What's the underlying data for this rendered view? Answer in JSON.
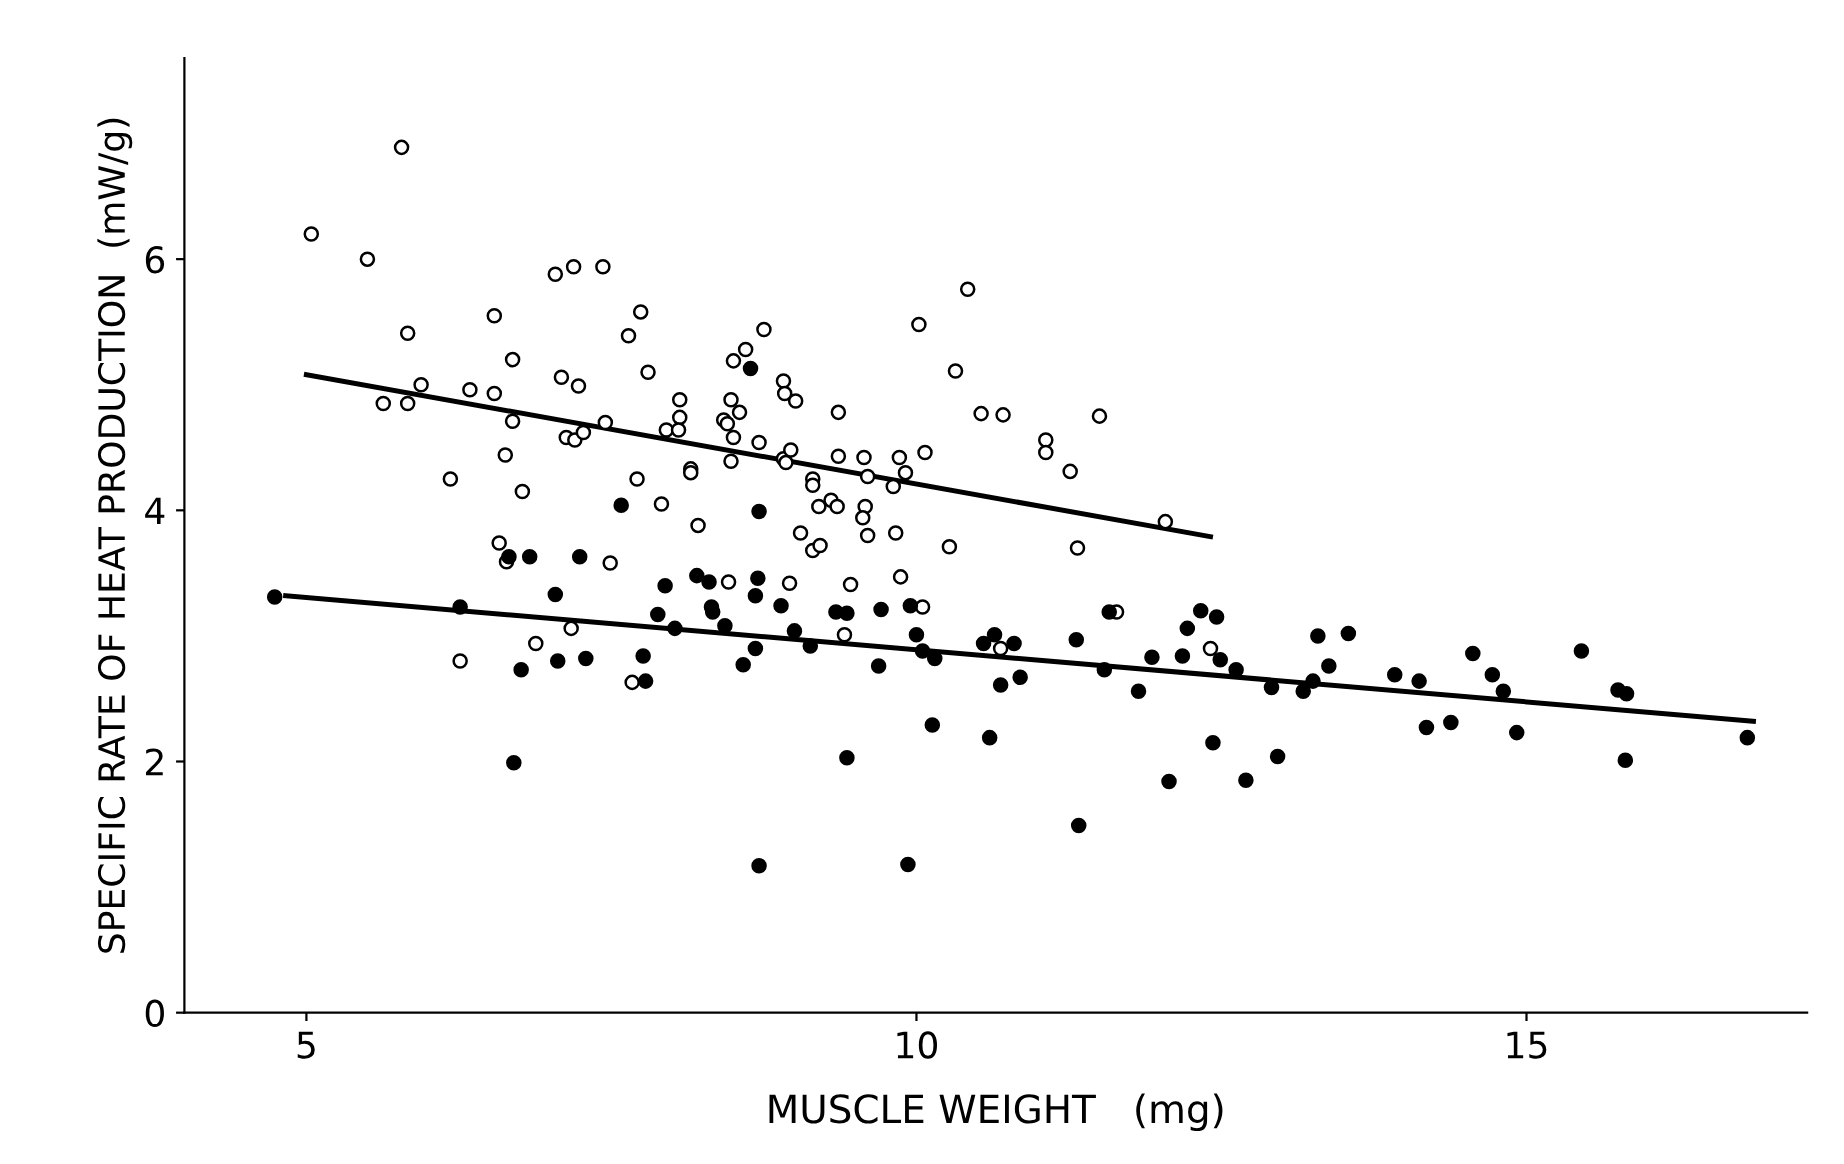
{
  "chart_data": {
    "type": "scatter",
    "xlabel": "MUSCLE WEIGHT   (mg)",
    "ylabel": "SPECIFIC RATE OF HEAT PRODUCTION  (mW/g)",
    "xlim": [
      4,
      17.3
    ],
    "xticks": [
      5,
      10,
      15
    ],
    "ylim": [
      0,
      7.6
    ],
    "yticks": [
      0,
      2,
      4,
      6
    ],
    "grid": false,
    "series": [
      {
        "color": "#ffffff",
        "marker": "circle",
        "x": [
          5.04,
          5.5,
          5.78,
          5.83,
          5.63,
          5.83,
          5.94,
          6.18,
          6.34,
          6.54,
          6.54,
          6.69,
          6.63,
          6.69,
          6.77,
          6.58,
          6.64,
          6.26,
          6.88,
          7.04,
          7.19,
          7.43,
          7.09,
          7.23,
          7.13,
          7.2,
          7.27,
          7.45,
          7.17,
          7.49,
          7.64,
          7.74,
          7.8,
          7.71,
          7.91,
          7.67,
          7.95,
          8.06,
          8.06,
          8.05,
          8.15,
          8.15,
          8.21,
          8.5,
          8.6,
          8.75,
          8.42,
          8.48,
          8.55,
          8.45,
          8.5,
          8.48,
          8.71,
          8.46,
          8.91,
          8.92,
          9.01,
          8.91,
          8.93,
          8.97,
          8.96,
          9.15,
          9.15,
          9.05,
          9.2,
          9.15,
          9.21,
          9.3,
          9.35,
          9.36,
          9.36,
          9.41,
          9.46,
          9.57,
          9.6,
          9.58,
          9.56,
          9.6,
          9.81,
          9.83,
          9.86,
          9.91,
          9.87,
          10.02,
          10.07,
          10.05,
          10.27,
          10.32,
          10.42,
          10.53,
          10.71,
          10.69,
          11.06,
          11.06,
          11.26,
          11.32,
          11.5,
          11.64,
          12.04,
          12.41
        ],
        "values": [
          6.2,
          6.0,
          6.89,
          5.41,
          4.85,
          4.85,
          5.0,
          4.25,
          4.96,
          5.55,
          4.93,
          5.2,
          4.44,
          4.71,
          4.15,
          3.74,
          3.59,
          2.8,
          2.94,
          5.88,
          5.94,
          5.94,
          5.06,
          4.99,
          4.58,
          4.56,
          4.62,
          4.7,
          3.06,
          3.58,
          5.39,
          5.58,
          5.1,
          4.25,
          4.05,
          2.63,
          4.64,
          4.88,
          4.74,
          4.64,
          4.33,
          4.3,
          3.88,
          5.19,
          5.28,
          5.44,
          4.72,
          4.88,
          4.78,
          4.69,
          4.58,
          4.39,
          4.54,
          3.43,
          5.03,
          4.93,
          4.87,
          4.41,
          4.38,
          4.48,
          3.42,
          4.25,
          4.2,
          3.82,
          4.03,
          3.68,
          3.72,
          4.08,
          4.03,
          4.78,
          4.43,
          3.01,
          3.41,
          4.42,
          4.27,
          4.03,
          3.94,
          3.8,
          4.19,
          3.82,
          4.42,
          4.3,
          3.47,
          5.48,
          4.46,
          3.23,
          3.71,
          5.11,
          5.76,
          4.77,
          4.76,
          2.9,
          4.56,
          4.46,
          4.31,
          3.7,
          4.75,
          3.19,
          3.91,
          2.9
        ]
      },
      {
        "color": "#000000",
        "marker": "circle",
        "x": [
          4.74,
          6.26,
          6.66,
          6.83,
          6.76,
          6.7,
          7.04,
          7.06,
          7.24,
          7.29,
          7.58,
          7.76,
          7.78,
          7.94,
          7.88,
          8.02,
          8.2,
          8.3,
          8.32,
          8.33,
          8.43,
          8.58,
          8.64,
          8.71,
          8.7,
          8.68,
          8.68,
          8.71,
          8.89,
          9.0,
          9.13,
          9.34,
          9.43,
          9.43,
          9.71,
          9.69,
          9.95,
          10.0,
          10.05,
          10.15,
          10.13,
          9.93,
          10.55,
          10.64,
          10.6,
          10.69,
          10.8,
          10.85,
          11.31,
          11.33,
          11.54,
          11.58,
          11.82,
          11.93,
          12.07,
          12.18,
          12.22,
          12.33,
          12.46,
          12.49,
          12.43,
          12.62,
          12.7,
          12.91,
          12.96,
          13.17,
          13.25,
          13.29,
          13.38,
          13.54,
          13.92,
          14.12,
          14.18,
          14.38,
          14.56,
          14.72,
          14.81,
          14.92,
          15.45,
          15.75,
          15.82,
          15.81,
          16.81
        ],
        "values": [
          3.31,
          3.23,
          3.63,
          3.63,
          2.73,
          1.99,
          3.33,
          2.8,
          3.63,
          2.82,
          4.04,
          2.84,
          2.64,
          3.4,
          3.17,
          3.06,
          3.48,
          3.43,
          3.23,
          3.19,
          3.08,
          2.77,
          5.13,
          3.99,
          3.46,
          3.32,
          2.9,
          1.17,
          3.24,
          3.04,
          2.92,
          3.19,
          3.18,
          2.03,
          3.21,
          2.76,
          3.24,
          3.01,
          2.88,
          2.82,
          2.29,
          1.18,
          2.94,
          3.01,
          2.19,
          2.61,
          2.94,
          2.67,
          2.97,
          1.49,
          2.73,
          3.19,
          2.56,
          2.83,
          1.84,
          2.84,
          3.06,
          3.2,
          3.15,
          2.81,
          2.15,
          2.73,
          1.85,
          2.59,
          2.04,
          2.56,
          2.64,
          3.0,
          2.76,
          3.02,
          2.69,
          2.64,
          2.27,
          2.31,
          2.86,
          2.69,
          2.56,
          2.23,
          2.88,
          2.57,
          2.54,
          2.01,
          2.19
        ]
      },
      {
        "type": "line",
        "color": "#000000",
        "marker": "none",
        "line_style": "solid",
        "x": [
          5.0,
          12.41
        ],
        "values": [
          5.08,
          3.79
        ]
      },
      {
        "type": "line",
        "color": "#000000",
        "marker": "none",
        "line_style": "solid",
        "x": [
          4.83,
          16.86
        ],
        "values": [
          3.32,
          2.32
        ]
      }
    ]
  }
}
